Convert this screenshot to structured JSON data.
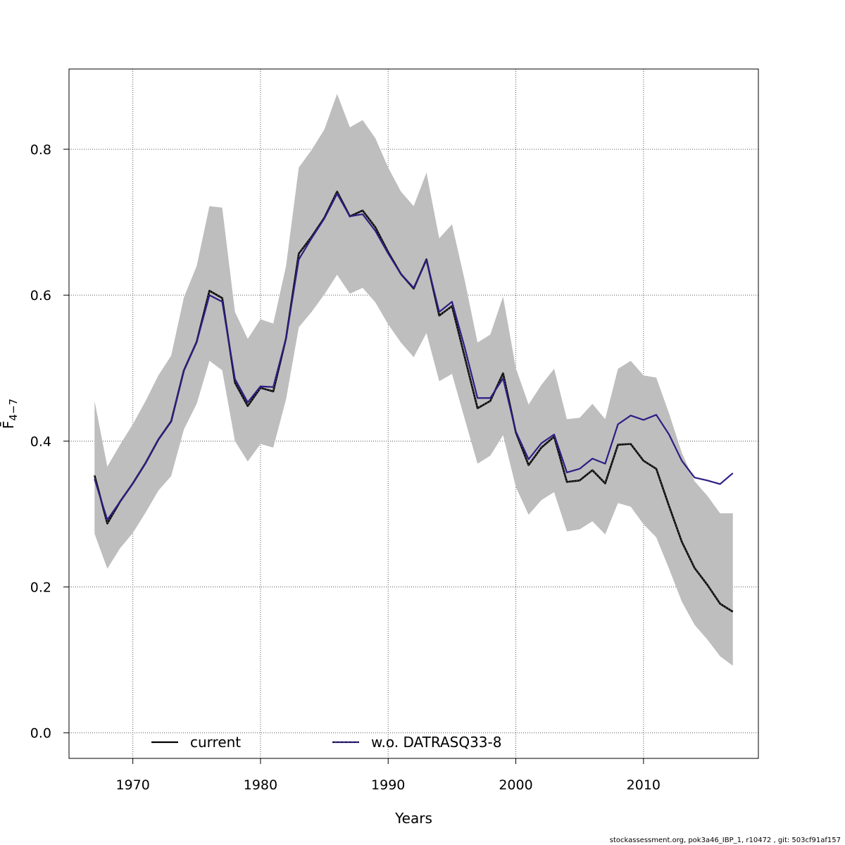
{
  "chart_data": {
    "type": "line",
    "xlabel": "Years",
    "ylabel": "F̄",
    "ylabel_subscript": "4−7",
    "xlim": [
      1965,
      2019
    ],
    "ylim": [
      -0.035,
      0.91
    ],
    "x_ticks": [
      1970,
      1980,
      1990,
      2000,
      2010
    ],
    "y_ticks": [
      0.0,
      0.2,
      0.4,
      0.6,
      0.8
    ],
    "y_tick_labels": [
      "0.0",
      "0.2",
      "0.4",
      "0.6",
      "0.8"
    ],
    "grid": true,
    "legend_position": "bottom",
    "x": [
      1967,
      1968,
      1969,
      1970,
      1971,
      1972,
      1973,
      1974,
      1975,
      1976,
      1977,
      1978,
      1979,
      1980,
      1981,
      1982,
      1983,
      1984,
      1985,
      1986,
      1987,
      1988,
      1989,
      1990,
      1991,
      1992,
      1993,
      1994,
      1995,
      1996,
      1997,
      1998,
      1999,
      2000,
      2001,
      2002,
      2003,
      2004,
      2005,
      2006,
      2007,
      2008,
      2009,
      2010,
      2011,
      2012,
      2013,
      2014,
      2015,
      2016,
      2017
    ],
    "band": {
      "name": "confidence interval",
      "color": "#bebebe",
      "upper": [
        0.455,
        0.365,
        0.395,
        0.423,
        0.455,
        0.49,
        0.517,
        0.597,
        0.64,
        0.722,
        0.72,
        0.577,
        0.54,
        0.567,
        0.561,
        0.64,
        0.775,
        0.799,
        0.827,
        0.876,
        0.83,
        0.84,
        0.815,
        0.775,
        0.742,
        0.722,
        0.768,
        0.678,
        0.697,
        0.62,
        0.535,
        0.546,
        0.598,
        0.5,
        0.45,
        0.477,
        0.499,
        0.43,
        0.432,
        0.451,
        0.43,
        0.499,
        0.51,
        0.49,
        0.487,
        0.438,
        0.384,
        0.345,
        0.325,
        0.301,
        0.301
      ],
      "lower": [
        0.273,
        0.225,
        0.253,
        0.274,
        0.302,
        0.332,
        0.352,
        0.416,
        0.451,
        0.51,
        0.497,
        0.4,
        0.372,
        0.396,
        0.391,
        0.457,
        0.556,
        0.577,
        0.601,
        0.628,
        0.602,
        0.61,
        0.59,
        0.56,
        0.535,
        0.515,
        0.548,
        0.482,
        0.492,
        0.43,
        0.369,
        0.38,
        0.408,
        0.337,
        0.299,
        0.319,
        0.33,
        0.276,
        0.279,
        0.29,
        0.272,
        0.315,
        0.31,
        0.286,
        0.268,
        0.225,
        0.18,
        0.148,
        0.128,
        0.105,
        0.092
      ]
    },
    "series": [
      {
        "name": "current",
        "color": "#000000",
        "values": [
          0.353,
          0.287,
          0.317,
          0.342,
          0.37,
          0.402,
          0.427,
          0.497,
          0.536,
          0.606,
          0.596,
          0.48,
          0.448,
          0.473,
          0.468,
          0.541,
          0.657,
          0.68,
          0.706,
          0.742,
          0.708,
          0.716,
          0.693,
          0.659,
          0.629,
          0.609,
          0.649,
          0.572,
          0.585,
          0.515,
          0.445,
          0.455,
          0.493,
          0.412,
          0.367,
          0.391,
          0.406,
          0.344,
          0.346,
          0.36,
          0.342,
          0.395,
          0.396,
          0.373,
          0.362,
          0.311,
          0.262,
          0.226,
          0.203,
          0.177,
          0.166
        ]
      },
      {
        "name": "w.o. DATRASQ33-8",
        "color": "#2c1e84",
        "values": [
          0.348,
          0.292,
          0.317,
          0.342,
          0.37,
          0.402,
          0.427,
          0.497,
          0.536,
          0.6,
          0.591,
          0.485,
          0.453,
          0.475,
          0.474,
          0.541,
          0.649,
          0.678,
          0.705,
          0.739,
          0.708,
          0.711,
          0.688,
          0.657,
          0.629,
          0.61,
          0.648,
          0.577,
          0.591,
          0.528,
          0.459,
          0.459,
          0.486,
          0.413,
          0.375,
          0.397,
          0.409,
          0.357,
          0.362,
          0.376,
          0.369,
          0.423,
          0.435,
          0.429,
          0.436,
          0.409,
          0.373,
          0.35,
          0.346,
          0.341,
          0.356
        ]
      }
    ]
  },
  "legend": {
    "current_label": "current",
    "wo_label": "w.o. DATRASQ33-8"
  },
  "footer": {
    "text": "stockassessment.org, pok3a46_IBP_1, r10472 , git: 503cf91af157"
  }
}
